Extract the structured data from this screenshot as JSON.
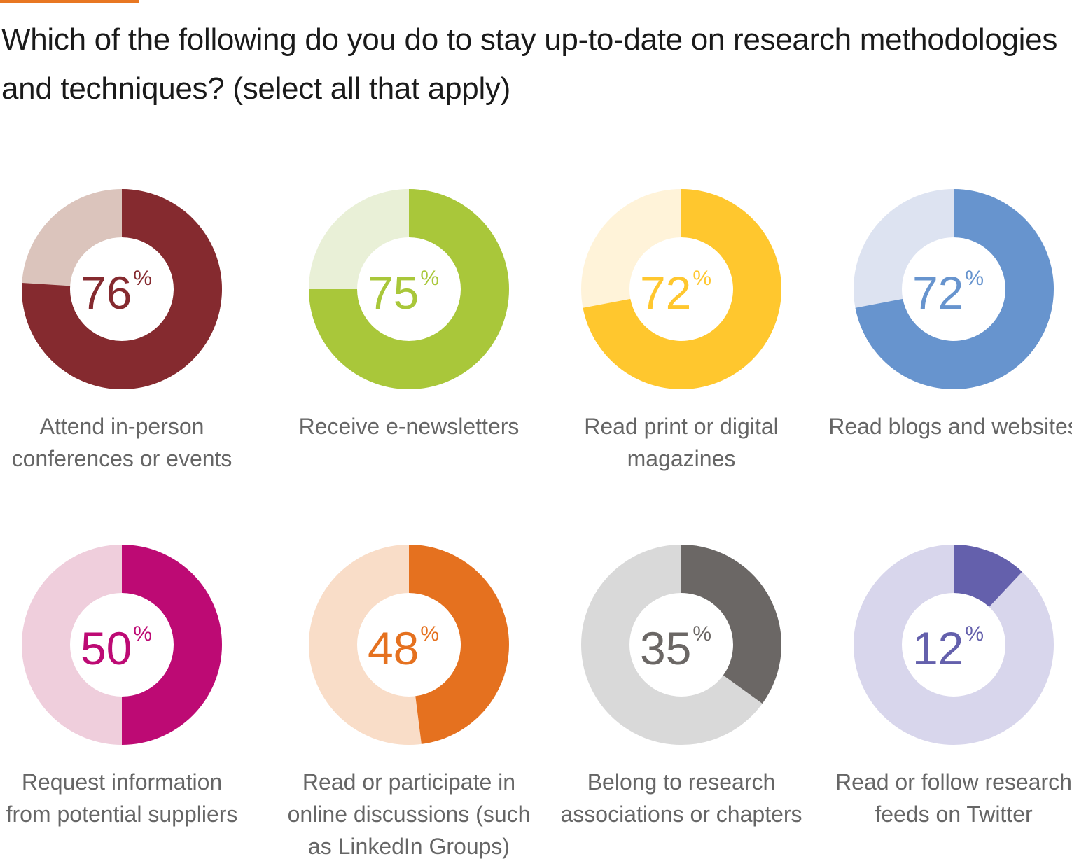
{
  "accent_color": "#E87722",
  "title": "Which of the following do you do to stay up-to-date on research methodologies and techniques? (select all that apply)",
  "chart_data": [
    {
      "type": "pie",
      "style": "donut",
      "value": 76,
      "value_label": "76",
      "unit": "%",
      "label_lines": [
        "Attend in-person",
        "conferences or events"
      ],
      "color": "#852A2F",
      "track_color": "#DBC4BC"
    },
    {
      "type": "pie",
      "style": "donut",
      "value": 75,
      "value_label": "75",
      "unit": "%",
      "label_lines": [
        "Receive e-newsletters"
      ],
      "color": "#A9C73A",
      "track_color": "#E9F0D7"
    },
    {
      "type": "pie",
      "style": "donut",
      "value": 72,
      "value_label": "72",
      "unit": "%",
      "label_lines": [
        "Read print or digital",
        "magazines"
      ],
      "color": "#FFC72E",
      "track_color": "#FFF3D9"
    },
    {
      "type": "pie",
      "style": "donut",
      "value": 72,
      "value_label": "72",
      "unit": "%",
      "label_lines": [
        "Read blogs and websites"
      ],
      "color": "#6794CE",
      "track_color": "#DDE3F1"
    },
    {
      "type": "pie",
      "style": "donut",
      "value": 50,
      "value_label": "50",
      "unit": "%",
      "label_lines": [
        "Request information",
        "from potential suppliers"
      ],
      "color": "#BD0A74",
      "track_color": "#EFCEDC"
    },
    {
      "type": "pie",
      "style": "donut",
      "value": 48,
      "value_label": "48",
      "unit": "%",
      "label_lines": [
        "Read or participate in",
        "online discussions (such",
        "as LinkedIn Groups)"
      ],
      "color": "#E5711F",
      "track_color": "#F9DDC8"
    },
    {
      "type": "pie",
      "style": "donut",
      "value": 35,
      "value_label": "35",
      "unit": "%",
      "label_lines": [
        "Belong to research",
        "associations or chapters"
      ],
      "color": "#6B6765",
      "track_color": "#D9D9D9"
    },
    {
      "type": "pie",
      "style": "donut",
      "value": 12,
      "value_label": "12",
      "unit": "%",
      "label_lines": [
        "Read or follow research",
        "feeds on Twitter"
      ],
      "color": "#6460AC",
      "track_color": "#D8D6EC"
    }
  ]
}
